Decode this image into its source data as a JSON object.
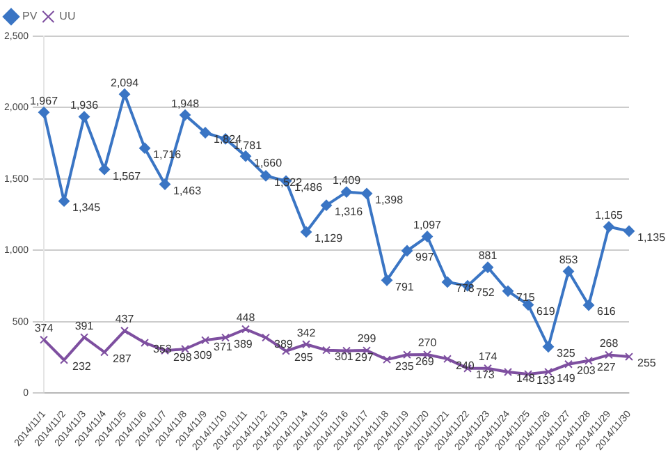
{
  "chart_data": {
    "type": "line",
    "categories": [
      "2014/11/1",
      "2014/11/2",
      "2014/11/3",
      "2014/11/4",
      "2014/11/5",
      "2014/11/6",
      "2014/11/7",
      "2014/11/8",
      "2014/11/9",
      "2014/11/10",
      "2014/11/11",
      "2014/11/12",
      "2014/11/13",
      "2014/11/14",
      "2014/11/15",
      "2014/11/16",
      "2014/11/17",
      "2014/11/18",
      "2014/11/19",
      "2014/11/20",
      "2014/11/21",
      "2014/11/22",
      "2014/11/23",
      "2014/11/24",
      "2014/11/25",
      "2014/11/26",
      "2014/11/27",
      "2014/11/28",
      "2014/11/29",
      "2014/11/30"
    ],
    "series": [
      {
        "name": "PV",
        "color": "#3a75c4",
        "marker": "diamond",
        "values": [
          1967,
          1345,
          1936,
          1567,
          2094,
          1716,
          1463,
          1948,
          1824,
          1781,
          1660,
          1522,
          1486,
          1129,
          1316,
          1409,
          1398,
          791,
          997,
          1097,
          778,
          752,
          881,
          715,
          619,
          325,
          853,
          616,
          1165,
          1135
        ],
        "value_labels": [
          "1,967",
          "1,345",
          "1,936",
          "1,567",
          "2,094",
          "1,716",
          "1,463",
          "1,948",
          "1,824",
          "1,781",
          "1,660",
          "1,522",
          "1,486",
          "1,129",
          "1,316",
          "1,409",
          "1,398",
          "791",
          "997",
          "1,097",
          "778",
          "752",
          "881",
          "715",
          "619",
          "325",
          "853",
          "616",
          "1,165",
          "1,135"
        ]
      },
      {
        "name": "UU",
        "color": "#7e4fa0",
        "marker": "cross",
        "values": [
          374,
          232,
          391,
          287,
          437,
          353,
          298,
          309,
          371,
          389,
          448,
          389,
          295,
          342,
          301,
          297,
          299,
          235,
          269,
          270,
          240,
          173,
          174,
          148,
          133,
          149,
          203,
          227,
          268,
          255
        ],
        "value_labels": [
          "374",
          "232",
          "391",
          "287",
          "437",
          "353",
          "298",
          "309",
          "371",
          "389",
          "448",
          "389",
          "295",
          "342",
          "301",
          "297",
          "299",
          "235",
          "269",
          "270",
          "240",
          "173",
          "174",
          "148",
          "133",
          "149",
          "203",
          "227",
          "268",
          "255"
        ]
      }
    ],
    "ylim": [
      0,
      2500
    ],
    "yticks": [
      {
        "value": 0,
        "label": "0"
      },
      {
        "value": 500,
        "label": "500"
      },
      {
        "value": 1000,
        "label": "1,000"
      },
      {
        "value": 1500,
        "label": "1,500"
      },
      {
        "value": 2000,
        "label": "2,000"
      },
      {
        "value": 2500,
        "label": "2,500"
      }
    ],
    "grid": "y",
    "legend": "top left",
    "line_style": "solid"
  }
}
